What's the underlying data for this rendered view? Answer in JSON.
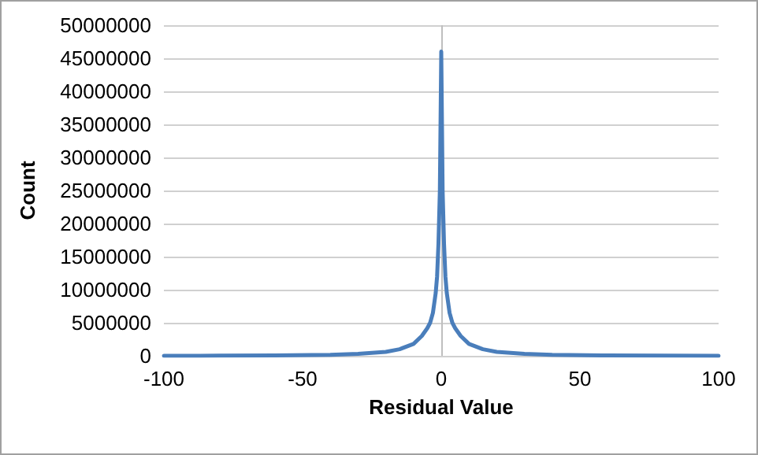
{
  "chart_data": {
    "type": "line",
    "xlabel": "Residual Value",
    "ylabel": "Count",
    "x": [
      -100,
      -80,
      -60,
      -40,
      -30,
      -20,
      -15,
      -10,
      -7,
      -5,
      -4,
      -3,
      -2,
      -1.5,
      -1,
      -0.5,
      0,
      0.5,
      1,
      1.5,
      2,
      3,
      4,
      5,
      7,
      10,
      15,
      20,
      30,
      40,
      60,
      80,
      100
    ],
    "series": [
      {
        "color": "#4a7ebb",
        "values": [
          0,
          20000,
          50000,
          150000,
          300000,
          600000,
          1000000,
          1800000,
          3000000,
          4200000,
          5000000,
          6500000,
          9500000,
          12000000,
          17000000,
          25000000,
          46000000,
          25000000,
          17000000,
          12000000,
          9500000,
          6500000,
          5000000,
          4200000,
          3000000,
          1800000,
          1000000,
          600000,
          300000,
          150000,
          50000,
          20000,
          0
        ]
      }
    ],
    "xlim": [
      -100,
      100
    ],
    "xticks": [
      -100,
      -50,
      0,
      50,
      100
    ],
    "ylim": [
      0,
      50000000
    ],
    "yticks": [
      0,
      5000000,
      10000000,
      15000000,
      20000000,
      25000000,
      30000000,
      35000000,
      40000000,
      45000000,
      50000000
    ],
    "grid": "y",
    "marker": "none",
    "line_style": "solid",
    "ref_lines": [
      {
        "axis": "x",
        "value": 0,
        "color": "#bfbfbf"
      }
    ]
  }
}
